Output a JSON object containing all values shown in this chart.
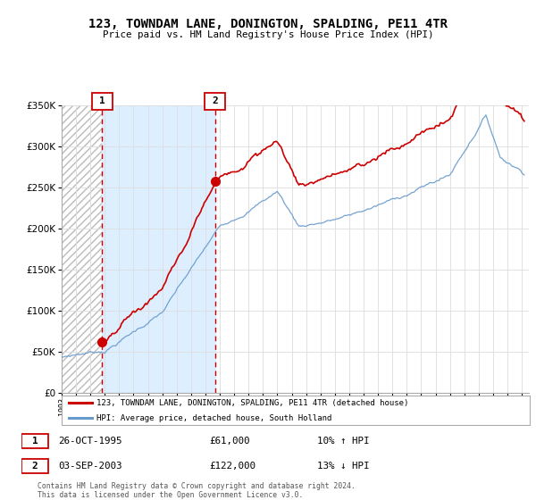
{
  "title": "123, TOWNDAM LANE, DONINGTON, SPALDING, PE11 4TR",
  "subtitle": "Price paid vs. HM Land Registry's House Price Index (HPI)",
  "legend_line1": "123, TOWNDAM LANE, DONINGTON, SPALDING, PE11 4TR (detached house)",
  "legend_line2": "HPI: Average price, detached house, South Holland",
  "sale1_date": "26-OCT-1995",
  "sale1_price": "£61,000",
  "sale1_hpi": "10% ↑ HPI",
  "sale1_year": 1995.82,
  "sale1_value": 61000,
  "sale2_date": "03-SEP-2003",
  "sale2_price": "£122,000",
  "sale2_hpi": "13% ↓ HPI",
  "sale2_year": 2003.67,
  "sale2_value": 122000,
  "footer": "Contains HM Land Registry data © Crown copyright and database right 2024.\nThis data is licensed under the Open Government Licence v3.0.",
  "ylim": [
    0,
    350000
  ],
  "yticks": [
    0,
    50000,
    100000,
    150000,
    200000,
    250000,
    300000,
    350000
  ],
  "color_red": "#cc0000",
  "color_blue": "#6699cc",
  "color_blue_fill": "#ddeeff",
  "color_hatch_edge": "#bbbbbb"
}
